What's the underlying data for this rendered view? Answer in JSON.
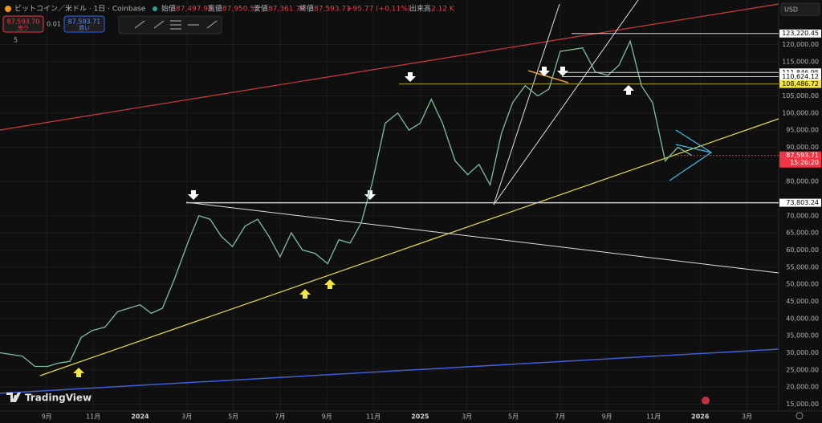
{
  "toolbar": {
    "symbol": "ビットコイン／米ドル · 1日 · Coinbase",
    "open_label": "始値",
    "open": "87,497.95",
    "high_label": "高値",
    "high": "87,950.53",
    "low_label": "安値",
    "low": "87,361.74",
    "close_label": "終値",
    "close": "87,593.71",
    "change": "+95.77 (+0.11%)",
    "volume_label": "出来高",
    "volume": "2.12 K",
    "sell_price": "87,593.70",
    "sell_label": "売り",
    "spread": "0.01",
    "buy_price": "87,593.71",
    "buy_label": "買い",
    "indicator_count": "5",
    "currency": "USD",
    "brand": "TradingView"
  },
  "chart_data": {
    "type": "line",
    "x": [
      2023.5,
      2023.58,
      2023.625,
      2023.67,
      2023.71,
      2023.75,
      2023.79,
      2023.83,
      2023.875,
      2023.92,
      2023.96,
      2024.0,
      2024.04,
      2024.08,
      2024.125,
      2024.17,
      2024.21,
      2024.25,
      2024.29,
      2024.33,
      2024.375,
      2024.42,
      2024.46,
      2024.5,
      2024.54,
      2024.58,
      2024.625,
      2024.67,
      2024.71,
      2024.75,
      2024.79,
      2024.83,
      2024.875,
      2024.92,
      2024.96,
      2025.0,
      2025.04,
      2025.08,
      2025.125,
      2025.17,
      2025.21,
      2025.25,
      2025.29,
      2025.33,
      2025.375,
      2025.42,
      2025.46,
      2025.5,
      2025.54,
      2025.58,
      2025.625,
      2025.67,
      2025.71,
      2025.75,
      2025.79,
      2025.83,
      2025.875,
      2025.92,
      2025.97
    ],
    "series": [
      {
        "name": "BTCUSD",
        "color": "#7fbf9a",
        "values": [
          30000,
          29000,
          26000,
          26000,
          27000,
          27500,
          34500,
          36500,
          37500,
          42000,
          43000,
          44000,
          41500,
          43000,
          52000,
          62000,
          70000,
          69000,
          64000,
          61000,
          67000,
          69000,
          64000,
          58000,
          65000,
          60000,
          59000,
          56000,
          63000,
          62000,
          68000,
          80000,
          97000,
          100000,
          95000,
          97000,
          104000,
          97000,
          86000,
          82000,
          85000,
          79000,
          94000,
          103000,
          108000,
          105000,
          107000,
          118000,
          118500,
          119000,
          112000,
          111000,
          114000,
          121000,
          108000,
          103000,
          86000,
          90000,
          87593.71
        ]
      }
    ],
    "xlim": [
      2023.5,
      2026.28
    ],
    "xticks": [
      {
        "value": 2023.667,
        "label": "9月"
      },
      {
        "value": 2023.833,
        "label": "11月"
      },
      2024,
      {
        "value": 2024.167,
        "label": "3月"
      },
      {
        "value": 2024.333,
        "label": "5月"
      },
      {
        "value": 2024.5,
        "label": "7月"
      },
      {
        "value": 2024.667,
        "label": "9月"
      },
      {
        "value": 2024.833,
        "label": "11月"
      },
      2025,
      {
        "value": 2025.167,
        "label": "3月"
      },
      {
        "value": 2025.333,
        "label": "5月"
      },
      {
        "value": 2025.5,
        "label": "7月"
      },
      {
        "value": 2025.667,
        "label": "9月"
      },
      {
        "value": 2025.833,
        "label": "11月"
      },
      2026,
      {
        "value": 2026.167,
        "label": "3月"
      }
    ],
    "ylim": [
      13000,
      133000
    ],
    "yticks": [
      {
        "value": 15000,
        "label": "15,000.00"
      },
      {
        "value": 20000,
        "label": "20,000.00"
      },
      {
        "value": 25000,
        "label": "25,000.00"
      },
      {
        "value": 30000,
        "label": "30,000.00"
      },
      {
        "value": 35000,
        "label": "35,000.00"
      },
      {
        "value": 40000,
        "label": "40,000.00"
      },
      {
        "value": 45000,
        "label": "45,000.00"
      },
      {
        "value": 50000,
        "label": "50,000.00"
      },
      {
        "value": 55000,
        "label": "55,000.00"
      },
      {
        "value": 60000,
        "label": "60,000.00"
      },
      {
        "value": 65000,
        "label": "65,000.00"
      },
      {
        "value": 70000,
        "label": "70,000.00"
      },
      {
        "value": 80000,
        "label": "80,000.00"
      },
      {
        "value": 90000,
        "label": "90,000.00"
      },
      {
        "value": 95000,
        "label": "95,000.00"
      },
      {
        "value": 100000,
        "label": "100,000.00"
      },
      {
        "value": 105000,
        "label": "105,000.00"
      },
      {
        "value": 115000,
        "label": "115,000.00"
      },
      {
        "value": 120000,
        "label": "120,000.00"
      }
    ],
    "grid": true,
    "levels": [
      {
        "value": 123220.45,
        "label": "123,220.45",
        "color": "#ffffff"
      },
      {
        "value": 111846.95,
        "label": "111,846.95",
        "color": "#ffffff"
      },
      {
        "value": 110624.12,
        "label": "110,624.12",
        "color": "#ffffff"
      },
      {
        "value": 108486.72,
        "label": "108,486.72",
        "color": "#f5e63c"
      },
      {
        "value": 87593.71,
        "label": "87,593.71",
        "color": "#f23645",
        "countdown": "15:26:20"
      },
      {
        "value": 73803.24,
        "label": "73,803.24",
        "color": "#ffffff"
      }
    ]
  }
}
